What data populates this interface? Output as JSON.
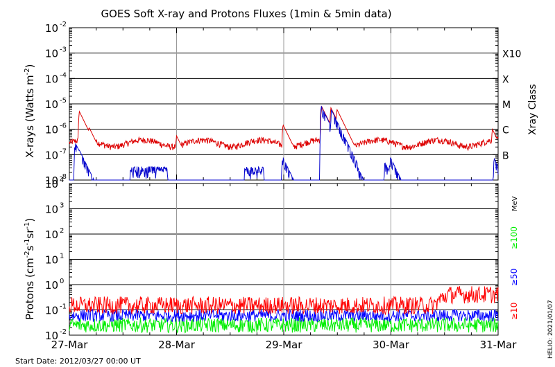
{
  "title": "GOES Soft X-ray and Protons Fluxes   (1min & 5min data)",
  "start_date": "Start Date: 2012/03/27 00:00 UT",
  "credit": "HELIO: 2021/01/07",
  "colors": {
    "xray_long": "#dd0000",
    "xray_short": "#0000cc",
    "p10": "#ff0000",
    "p50": "#0000ff",
    "p100": "#00ee00",
    "frame": "#000000",
    "grid": "#999999"
  },
  "chart_data": [
    {
      "type": "line",
      "panel": "xray",
      "ylabel_main": "X-rays (Watts m",
      "ylabel_exp": "-2",
      "ylabel_close": ")",
      "yscale": "log",
      "ylim": [
        1e-08,
        0.01
      ],
      "yticks": [
        {
          "base": "10",
          "exp": "-8",
          "value": 1e-08
        },
        {
          "base": "10",
          "exp": "-7",
          "value": 1e-07
        },
        {
          "base": "10",
          "exp": "-6",
          "value": 1e-06
        },
        {
          "base": "10",
          "exp": "-5",
          "value": 1e-05
        },
        {
          "base": "10",
          "exp": "-4",
          "value": 0.0001
        },
        {
          "base": "10",
          "exp": "-3",
          "value": 0.001
        },
        {
          "base": "10",
          "exp": "-2",
          "value": 0.01
        }
      ],
      "right_axis_title": "Xray Class",
      "class_labels": [
        {
          "label": "B",
          "value": 1e-07
        },
        {
          "label": "C",
          "value": 1e-06
        },
        {
          "label": "M",
          "value": 1e-05
        },
        {
          "label": "X",
          "value": 0.0001
        },
        {
          "label": "X10",
          "value": 0.001
        }
      ],
      "series": [
        {
          "color_key": "xray_long",
          "baseline": 2.8e-07,
          "events": [
            [
              0.28,
              5e-06
            ],
            [
              0.55,
              1.2e-06
            ],
            [
              3.0,
              5.5e-07
            ],
            [
              5.98,
              1.5e-06
            ],
            [
              7.06,
              8e-06
            ],
            [
              7.32,
              7e-06
            ],
            [
              7.49,
              6e-06
            ],
            [
              7.67,
              9e-07
            ],
            [
              11.84,
              1e-06
            ],
            [
              12.15,
              6.5e-07
            ],
            [
              12.65,
              5e-07
            ]
          ]
        },
        {
          "color_key": "xray_short",
          "baseline": 1e-08,
          "events": [
            [
              0.16,
              3e-07
            ],
            [
              0.28,
              1.5e-07
            ],
            [
              0.36,
              9e-08
            ],
            [
              5.97,
              8e-08
            ],
            [
              7.05,
              8e-06
            ],
            [
              7.19,
              1.5e-07
            ],
            [
              7.33,
              6e-06
            ],
            [
              7.38,
              1.4e-07
            ],
            [
              7.49,
              1.5e-06
            ],
            [
              8.83,
              5e-08
            ],
            [
              8.98,
              8e-08
            ],
            [
              11.89,
              7e-08
            ]
          ],
          "noise_segments": [
            [
              1.7,
              2.5
            ],
            [
              2.2,
              2.5
            ],
            [
              4.9,
              5.2
            ]
          ]
        }
      ]
    },
    {
      "type": "line",
      "panel": "protons",
      "ylabel_main": "Protons (cm",
      "ylabel_exp1": "-2",
      "ylabel_mid1": "s",
      "ylabel_exp2": "-1",
      "ylabel_mid2": "sr",
      "ylabel_exp3": "-1",
      "ylabel_close": ")",
      "yscale": "log",
      "ylim": [
        0.01,
        10000
      ],
      "yticks": [
        {
          "base": "10",
          "exp": "-2",
          "value": 0.01
        },
        {
          "base": "10",
          "exp": "-1",
          "value": 0.1
        },
        {
          "base": "10",
          "exp": "0",
          "value": 1
        },
        {
          "base": "10",
          "exp": "1",
          "value": 10
        },
        {
          "base": "10",
          "exp": "2",
          "value": 100
        },
        {
          "base": "10",
          "exp": "3",
          "value": 1000
        },
        {
          "base": "10",
          "exp": "4",
          "value": 10000
        }
      ],
      "threshold_dashed": 10,
      "right_unit": "MeV",
      "series": [
        {
          "name": "≥10",
          "color_key": "p10",
          "baseline": 0.15,
          "late_level": 0.4,
          "rise_start": 10.2,
          "rise_end": 10.6,
          "spread": 0.35
        },
        {
          "name": "≥50",
          "color_key": "p50",
          "baseline": 0.06,
          "spread": 0.25
        },
        {
          "name": "≥100",
          "color_key": "p100",
          "baseline": 0.025,
          "spread": 0.3
        }
      ]
    }
  ],
  "x_axis": {
    "ticks": [
      "27-Mar",
      "28-Mar",
      "29-Mar",
      "30-Mar",
      "31-Mar"
    ],
    "range_hours": [
      0,
      96
    ]
  }
}
